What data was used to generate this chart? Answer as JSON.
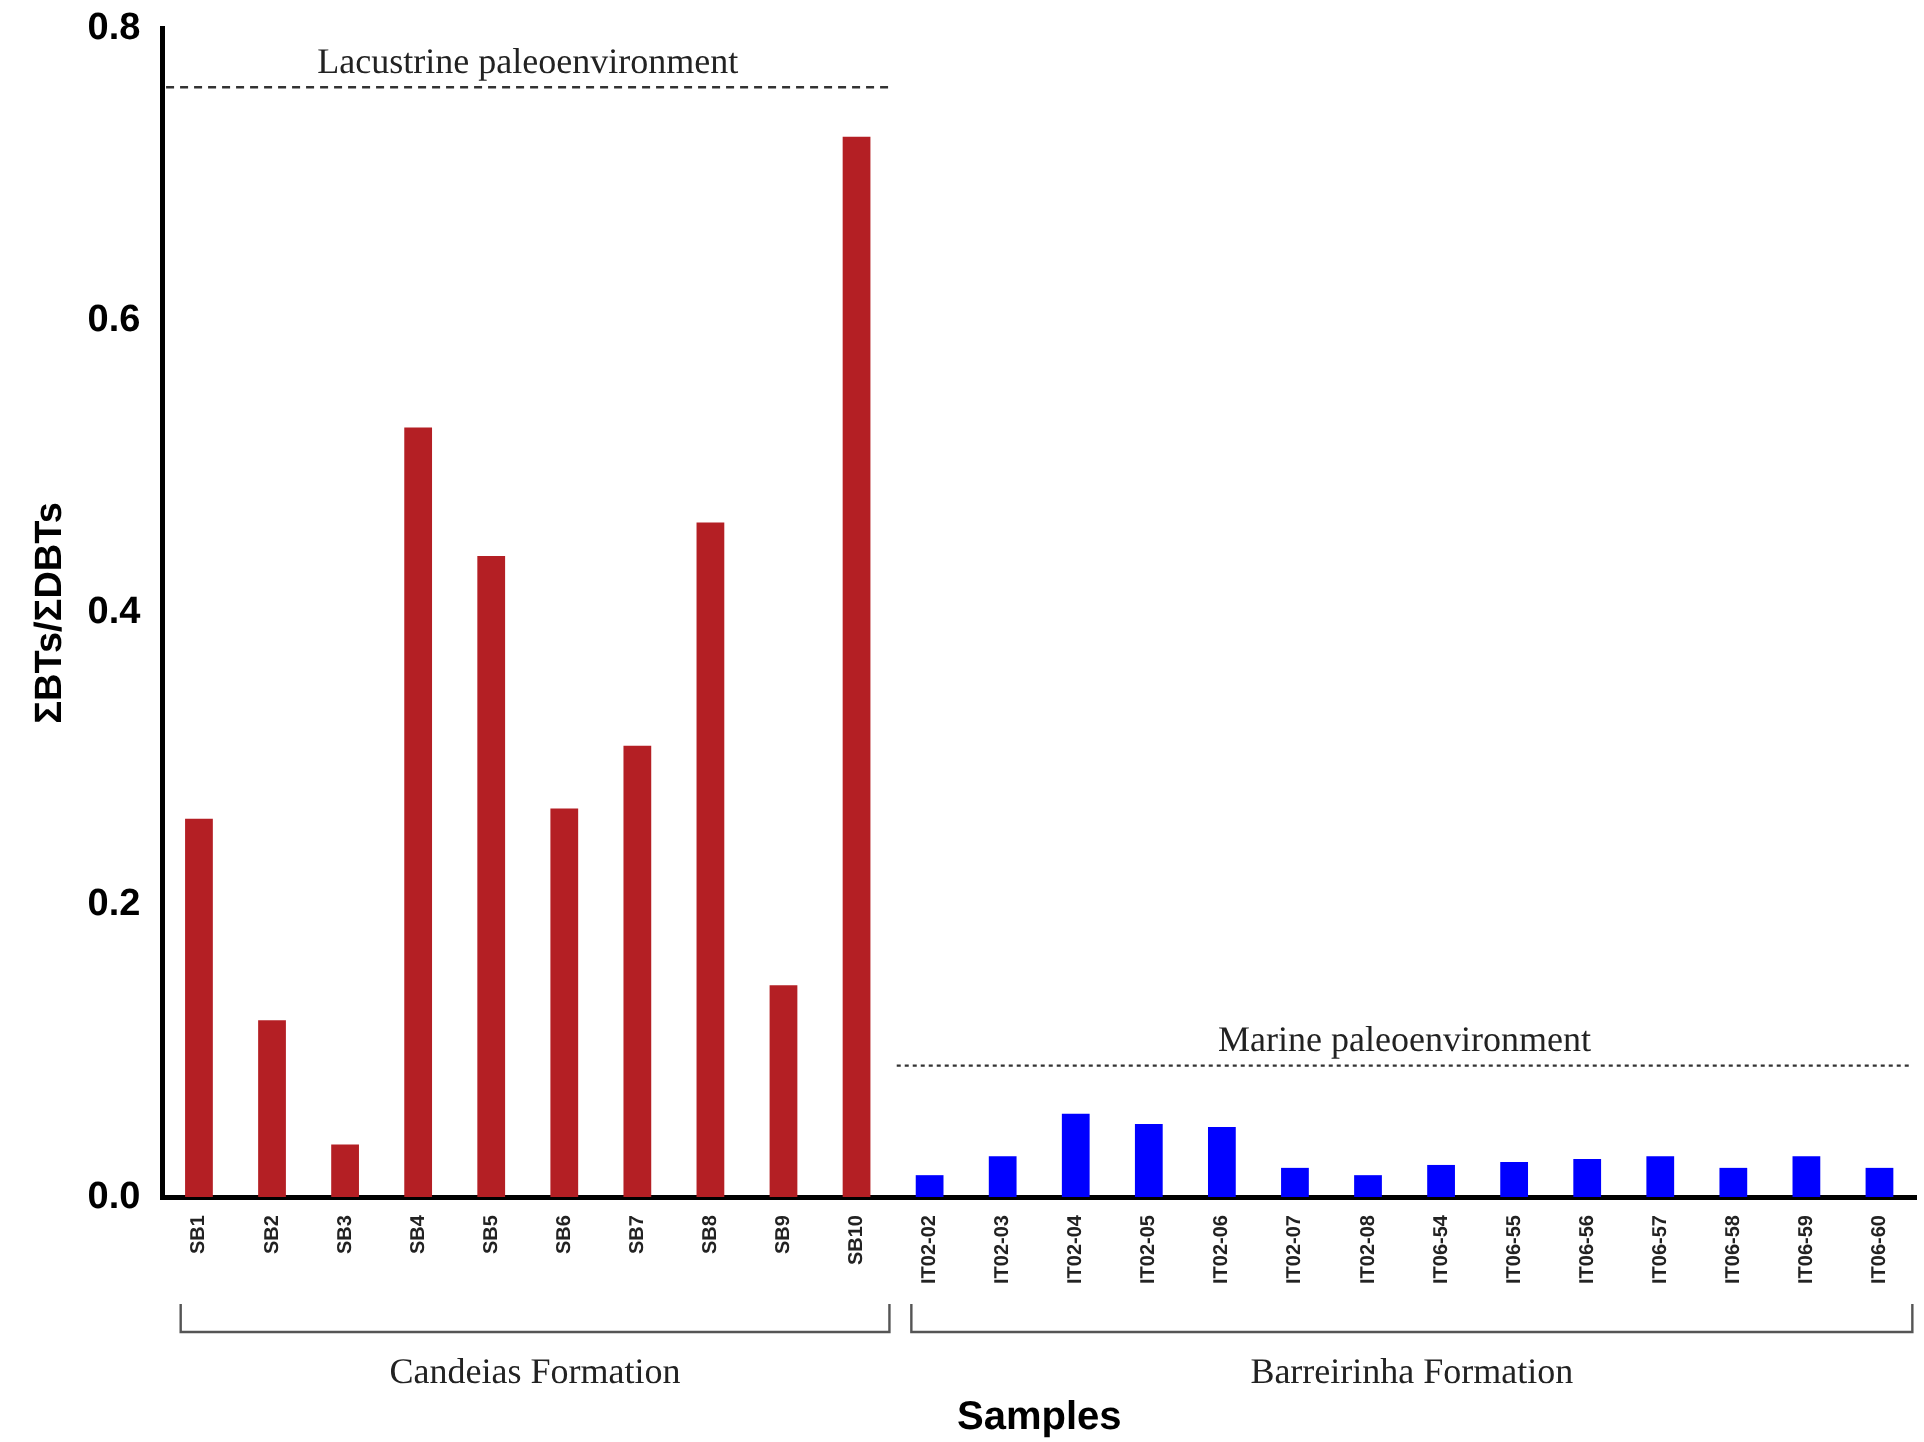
{
  "chart_data": {
    "type": "bar",
    "ylabel": "ΣBTs/ΣDBTs",
    "xlabel": "Samples",
    "categories": [
      "SB1",
      "SB2",
      "SB3",
      "SB4",
      "SB5",
      "SB6",
      "SB7",
      "SB8",
      "SB9",
      "SB10",
      "IT02-02",
      "IT02-03",
      "IT02-04",
      "IT02-05",
      "IT02-06",
      "IT02-07",
      "IT02-08",
      "IT06-54",
      "IT06-55",
      "IT06-56",
      "IT06-57",
      "IT06-58",
      "IT06-59",
      "IT06-60"
    ],
    "values": [
      0.259,
      0.121,
      0.036,
      0.527,
      0.439,
      0.266,
      0.309,
      0.462,
      0.145,
      0.726,
      0.015,
      0.028,
      0.057,
      0.05,
      0.048,
      0.02,
      0.015,
      0.022,
      0.024,
      0.026,
      0.028,
      0.02,
      0.028,
      0.02
    ],
    "colors": [
      "#b41f24",
      "#b41f24",
      "#b41f24",
      "#b41f24",
      "#b41f24",
      "#b41f24",
      "#b41f24",
      "#b41f24",
      "#b41f24",
      "#b41f24",
      "#0000ff",
      "#0000ff",
      "#0000ff",
      "#0000ff",
      "#0000ff",
      "#0000ff",
      "#0000ff",
      "#0000ff",
      "#0000ff",
      "#0000ff",
      "#0000ff",
      "#0000ff",
      "#0000ff",
      "#0000ff"
    ],
    "ylim": [
      0,
      0.8
    ],
    "yticks": [
      {
        "value": 0,
        "label": "0.0"
      },
      0.2,
      0.4,
      0.6,
      0.8
    ],
    "ref_lines": [
      {
        "axis": "y",
        "value": 0.76,
        "label": "Lacustrine paleoenvironment",
        "line_style": "dashed"
      },
      {
        "axis": "y",
        "value": 0.09,
        "label": "Marine paleoenvironment",
        "line_style": "dotted"
      }
    ],
    "annotations": [
      "Candeias Formation",
      "Barreirinha Formation"
    ],
    "grid": false,
    "legend": false
  }
}
